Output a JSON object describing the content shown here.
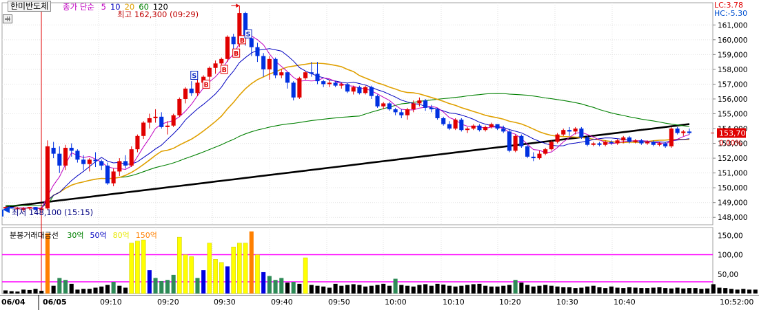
{
  "header": {
    "stock_name": "한미반도체",
    "ma_label": "종가 단순",
    "ma_periods": [
      {
        "label": "5",
        "color": "#c000c0"
      },
      {
        "label": "10",
        "color": "#0000c0"
      },
      {
        "label": "20",
        "color": "#e0a000"
      },
      {
        "label": "60",
        "color": "#008000"
      },
      {
        "label": "120",
        "color": "#000000"
      }
    ],
    "lc_label": "LC:3.78",
    "hc_label": "HC:-5.30"
  },
  "volume_header": {
    "label": "분봉거래대금선",
    "levels": [
      {
        "label": "30억",
        "color": "#008000"
      },
      {
        "label": "50억",
        "color": "#0000c0"
      },
      {
        "label": "80억",
        "color": "#e8e800"
      },
      {
        "label": "150억",
        "color": "#ff8000"
      }
    ]
  },
  "annotations": {
    "high_label": "최고 162,300 (09:29)",
    "low_label": "최저 148,100 (15:15)",
    "current_price": "153,700",
    "current_change": "0.00%",
    "signals": [
      "B",
      "B",
      "B",
      "B",
      "S",
      "S"
    ]
  },
  "colors": {
    "up": "#e00000",
    "down": "#0030e0",
    "ma5": "#c000c0",
    "ma10": "#0000c0",
    "ma20": "#e0a000",
    "ma60": "#008000",
    "ma120": "#000000",
    "threshold": "#ff00ff",
    "vol_30": "#2e8b57",
    "vol_50": "#0000e0",
    "vol_80": "#ffff00",
    "vol_150": "#ff8000",
    "vol_base": "#000000"
  },
  "chart_data": [
    {
      "type": "candlestick",
      "y_ticks": [
        148000,
        149000,
        150000,
        151000,
        152000,
        153000,
        154000,
        155000,
        156000,
        157000,
        158000,
        159000,
        160000,
        161000
      ],
      "y_tick_labels": [
        "148,000",
        "149,000",
        "150,000",
        "151,000",
        "152,000",
        "153,000",
        "154,000",
        "155,000",
        "156,000",
        "157,000",
        "158,000",
        "159,000",
        "160,000",
        "161,000"
      ],
      "x_labels": [
        "06/04",
        "06/05",
        "09:10",
        "09:20",
        "09:30",
        "09:40",
        "09:50",
        "10:00",
        "10:10",
        "10:20",
        "10:30",
        "10:40"
      ],
      "time_label": "10:52:00",
      "candles": [
        [
          148600,
          148700,
          148500,
          148700
        ],
        [
          148700,
          148700,
          148600,
          148600
        ],
        [
          148600,
          148700,
          148500,
          148600
        ],
        [
          148500,
          148700,
          148400,
          148600
        ],
        [
          148600,
          148700,
          148500,
          148700
        ],
        [
          148700,
          148700,
          148500,
          148500
        ],
        [
          148500,
          148700,
          148500,
          148600
        ],
        [
          148600,
          153200,
          148500,
          152800
        ],
        [
          152700,
          153100,
          152000,
          152300
        ],
        [
          152300,
          152800,
          151000,
          151500
        ],
        [
          151500,
          152900,
          151200,
          152700
        ],
        [
          152700,
          153000,
          152100,
          152500
        ],
        [
          152500,
          152600,
          151700,
          151900
        ],
        [
          151900,
          152200,
          151200,
          151600
        ],
        [
          151600,
          152000,
          151100,
          151900
        ],
        [
          151900,
          152400,
          151400,
          151800
        ],
        [
          151800,
          151900,
          151200,
          151500
        ],
        [
          151500,
          151700,
          150200,
          150300
        ],
        [
          150300,
          151300,
          150100,
          151100
        ],
        [
          151100,
          152000,
          150800,
          151800
        ],
        [
          151800,
          152200,
          151300,
          151500
        ],
        [
          151500,
          152800,
          151400,
          152600
        ],
        [
          152600,
          153600,
          152400,
          153500
        ],
        [
          153500,
          154500,
          153300,
          154400
        ],
        [
          154400,
          155000,
          154000,
          154700
        ],
        [
          154700,
          155300,
          154400,
          154800
        ],
        [
          154800,
          155100,
          154000,
          154100
        ],
        [
          154100,
          154500,
          153600,
          154200
        ],
        [
          154200,
          155000,
          154100,
          154900
        ],
        [
          154900,
          156100,
          154800,
          156000
        ],
        [
          156000,
          156800,
          155700,
          156700
        ],
        [
          156700,
          157200,
          156200,
          156400
        ],
        [
          156400,
          157300,
          156200,
          157100
        ],
        [
          157100,
          157600,
          156700,
          157500
        ],
        [
          157500,
          158200,
          157200,
          158100
        ],
        [
          158100,
          158600,
          157700,
          158400
        ],
        [
          158400,
          158800,
          158100,
          158700
        ],
        [
          158700,
          160300,
          158500,
          160200
        ],
        [
          160200,
          160400,
          159300,
          159700
        ],
        [
          159700,
          162300,
          159500,
          161800
        ],
        [
          161800,
          161900,
          159600,
          160100
        ],
        [
          160100,
          160600,
          158900,
          159500
        ],
        [
          159500,
          159800,
          158500,
          158900
        ],
        [
          158900,
          159100,
          157500,
          158000
        ],
        [
          158000,
          158900,
          157300,
          158700
        ],
        [
          158700,
          158800,
          157400,
          157600
        ],
        [
          157600,
          158000,
          157400,
          157800
        ],
        [
          157800,
          157800,
          156700,
          157100
        ],
        [
          157100,
          157200,
          155900,
          156100
        ],
        [
          156100,
          157500,
          156000,
          157400
        ],
        [
          157400,
          157900,
          157300,
          157800
        ],
        [
          157800,
          158500,
          157500,
          157700
        ],
        [
          157700,
          158500,
          157000,
          157200
        ],
        [
          157200,
          157300,
          156800,
          157000
        ],
        [
          157000,
          157300,
          156800,
          157100
        ],
        [
          157100,
          157200,
          156800,
          156900
        ],
        [
          156900,
          157100,
          156700,
          157000
        ],
        [
          157000,
          157100,
          156400,
          156500
        ],
        [
          156500,
          156900,
          156300,
          156800
        ],
        [
          156800,
          156900,
          156300,
          156400
        ],
        [
          156400,
          156900,
          156300,
          156800
        ],
        [
          156800,
          156900,
          156000,
          156200
        ],
        [
          156200,
          156300,
          155400,
          155500
        ],
        [
          155500,
          155800,
          155300,
          155700
        ],
        [
          155700,
          155800,
          155200,
          155300
        ],
        [
          155300,
          155400,
          154900,
          155100
        ],
        [
          155100,
          155300,
          154700,
          154900
        ],
        [
          154900,
          155400,
          154600,
          155300
        ],
        [
          155300,
          155900,
          155100,
          155700
        ],
        [
          155700,
          156100,
          155500,
          155900
        ],
        [
          155900,
          156000,
          155200,
          155400
        ],
        [
          155400,
          155600,
          155100,
          155300
        ],
        [
          155300,
          155400,
          154600,
          154700
        ],
        [
          154700,
          154800,
          154200,
          154300
        ],
        [
          154300,
          154500,
          153900,
          154000
        ],
        [
          154000,
          154700,
          153900,
          154600
        ],
        [
          154600,
          154700,
          153800,
          153900
        ],
        [
          153900,
          154100,
          153700,
          154000
        ],
        [
          154000,
          154300,
          153900,
          154200
        ],
        [
          154200,
          154300,
          153800,
          153900
        ],
        [
          153900,
          154200,
          153800,
          154100
        ],
        [
          154100,
          154400,
          154000,
          154300
        ],
        [
          154300,
          154300,
          153900,
          154000
        ],
        [
          154000,
          154200,
          153700,
          153800
        ],
        [
          153800,
          153900,
          152400,
          152500
        ],
        [
          152500,
          153600,
          152400,
          153500
        ],
        [
          153500,
          153600,
          152700,
          152800
        ],
        [
          152800,
          152900,
          152000,
          152100
        ],
        [
          152100,
          152400,
          151800,
          152000
        ],
        [
          152000,
          152500,
          151900,
          152300
        ],
        [
          152300,
          152700,
          152200,
          152600
        ],
        [
          152600,
          153200,
          152500,
          153100
        ],
        [
          153100,
          153700,
          153000,
          153600
        ],
        [
          153600,
          154000,
          153500,
          153900
        ],
        [
          153900,
          154100,
          153500,
          153800
        ],
        [
          153800,
          154100,
          153600,
          154000
        ],
        [
          154000,
          154100,
          153300,
          153400
        ],
        [
          153400,
          153500,
          152800,
          152900
        ],
        [
          152900,
          153100,
          152800,
          153000
        ],
        [
          153000,
          153100,
          152800,
          152900
        ],
        [
          152900,
          153200,
          152800,
          153100
        ],
        [
          153100,
          153200,
          152900,
          153000
        ],
        [
          153000,
          153300,
          152900,
          153200
        ],
        [
          153200,
          153500,
          153000,
          153400
        ],
        [
          153400,
          153500,
          153000,
          153100
        ],
        [
          153100,
          153300,
          153000,
          153200
        ],
        [
          153200,
          153300,
          152900,
          153000
        ],
        [
          153000,
          153200,
          152900,
          153100
        ],
        [
          153100,
          153200,
          152800,
          152900
        ],
        [
          152900,
          153100,
          152800,
          153000
        ],
        [
          153000,
          153100,
          152700,
          152800
        ],
        [
          152800,
          154100,
          152700,
          154000
        ],
        [
          154000,
          154100,
          153600,
          153700
        ],
        [
          153700,
          153900,
          153500,
          153800
        ],
        [
          153800,
          154000,
          153600,
          153700
        ]
      ]
    },
    {
      "type": "bar",
      "y_ticks": [
        50,
        100,
        150
      ],
      "y_tick_labels": [
        "50,00",
        "100,00",
        "150,00"
      ],
      "threshold_lines": [
        30,
        100
      ],
      "values": [
        8,
        6,
        5,
        10,
        9,
        12,
        7,
        155,
        20,
        40,
        35,
        25,
        10,
        12,
        12,
        15,
        18,
        22,
        30,
        20,
        15,
        130,
        135,
        138,
        60,
        40,
        32,
        35,
        48,
        145,
        100,
        95,
        40,
        60,
        130,
        88,
        80,
        70,
        120,
        130,
        130,
        160,
        100,
        55,
        45,
        35,
        40,
        28,
        30,
        25,
        92,
        22,
        20,
        18,
        15,
        25,
        20,
        22,
        24,
        22,
        18,
        20,
        22,
        25,
        20,
        38,
        22,
        20,
        18,
        22,
        24,
        20,
        25,
        23,
        20,
        18,
        20,
        22,
        24,
        25,
        20,
        18,
        18,
        20,
        22,
        35,
        28,
        22,
        18,
        20,
        22,
        20,
        18,
        16,
        16,
        14,
        15,
        18,
        20,
        16,
        14,
        18,
        15,
        14,
        16,
        15,
        14,
        14,
        15,
        16,
        14,
        13,
        15,
        13,
        14,
        14,
        12,
        13,
        24,
        15,
        14,
        12,
        10,
        12,
        10,
        10,
        9,
        8
      ]
    }
  ]
}
